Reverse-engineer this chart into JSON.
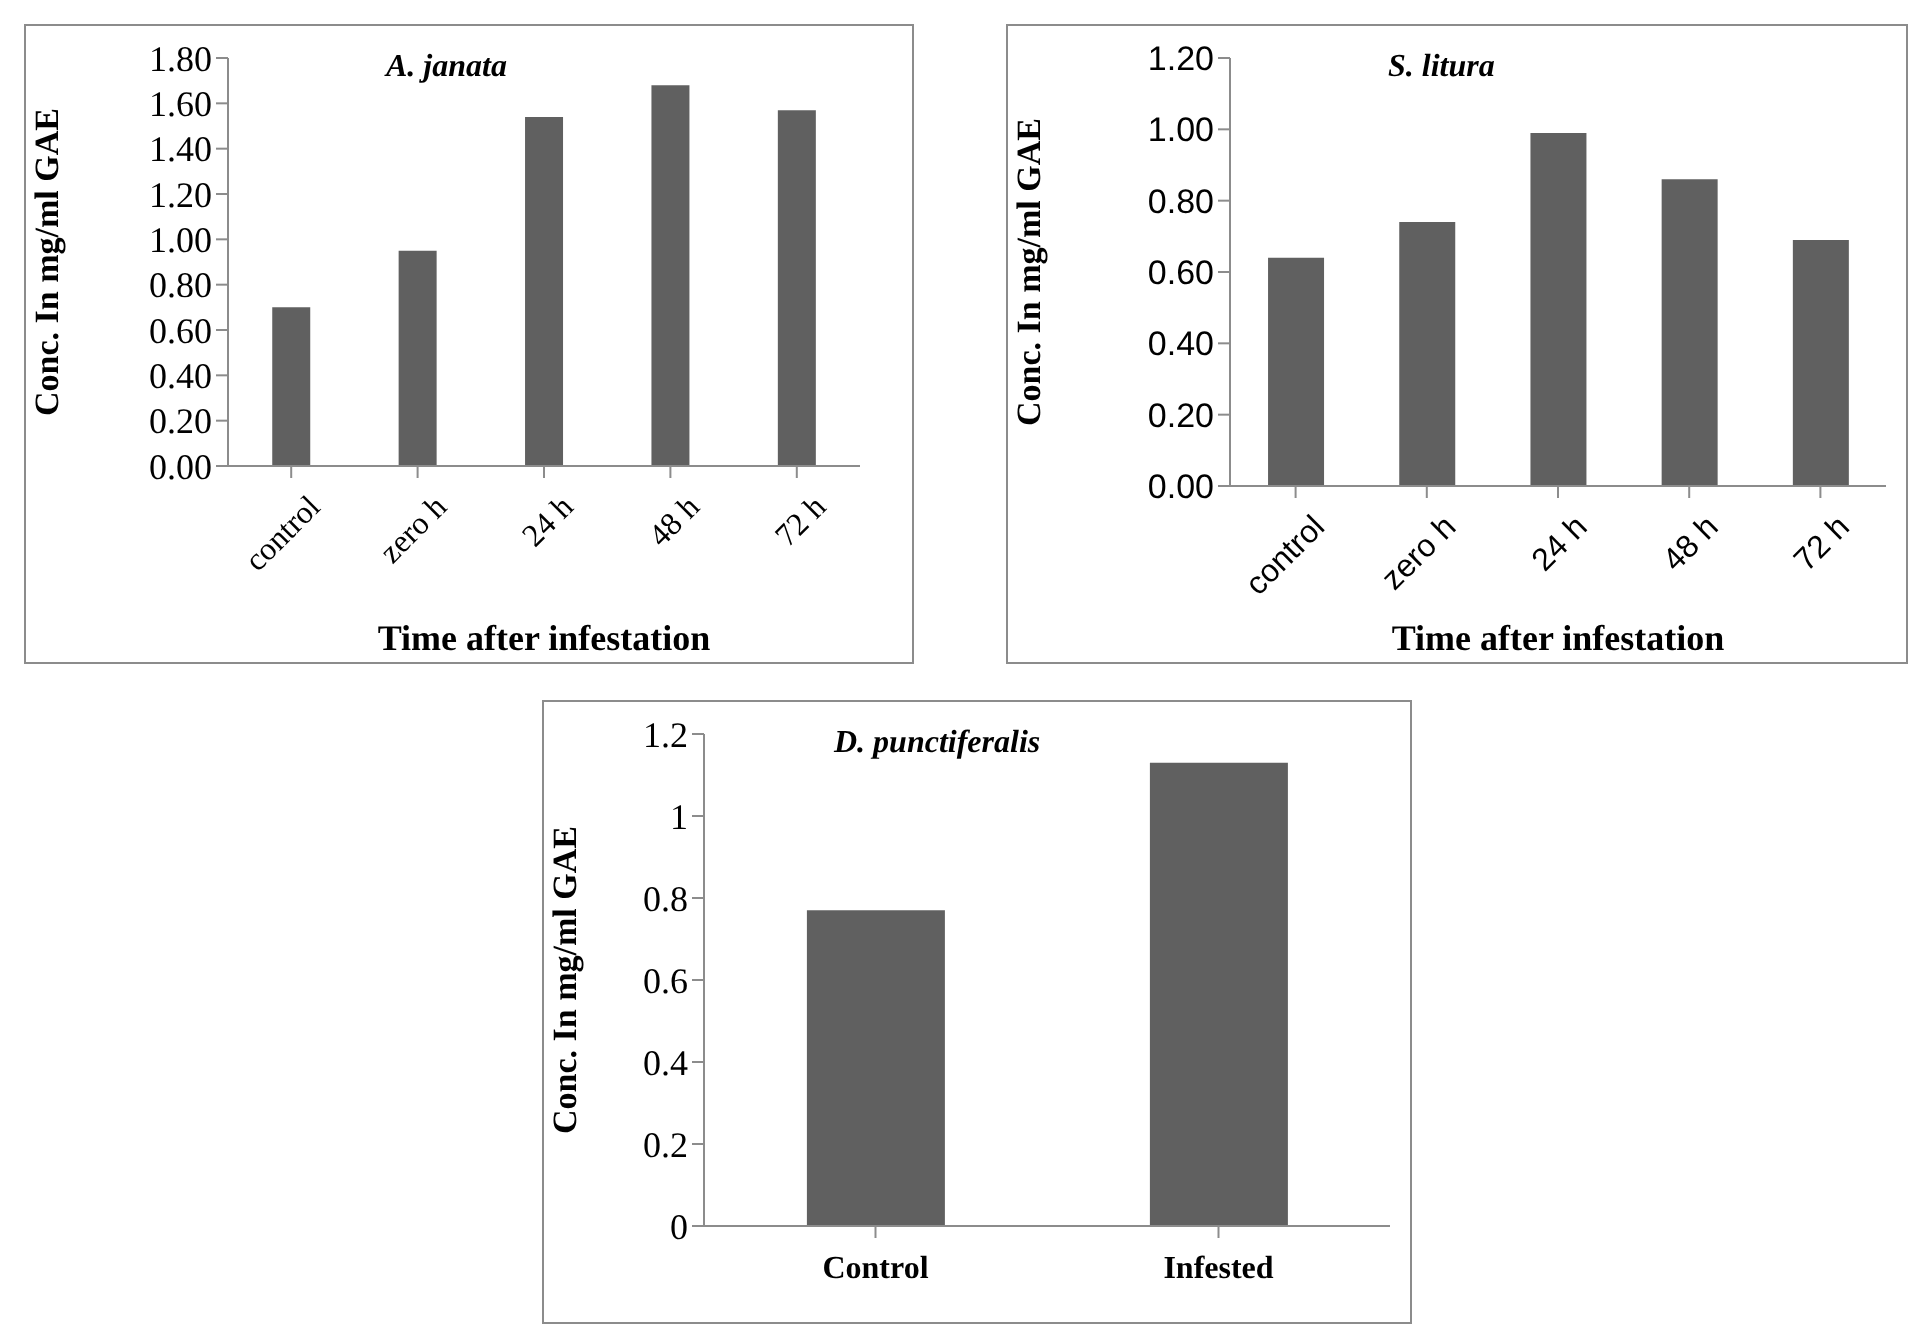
{
  "chart_data": [
    {
      "type": "bar",
      "title": "A. janata",
      "xlabel": "Time after infestation",
      "ylabel": "Conc. In mg/ml GAE",
      "categories": [
        "control",
        "zero h",
        "24 h",
        "48 h",
        "72 h"
      ],
      "values": [
        0.7,
        0.95,
        1.54,
        1.68,
        1.57
      ],
      "color": "#606060",
      "ylim": [
        0,
        1.8
      ],
      "yticks": [
        {
          "value": 0,
          "label": "0.00"
        },
        {
          "value": 0.2,
          "label": "0.20"
        },
        {
          "value": 0.4,
          "label": "0.40"
        },
        {
          "value": 0.6,
          "label": "0.60"
        },
        {
          "value": 0.8,
          "label": "0.80"
        },
        {
          "value": 1,
          "label": "1.00"
        },
        {
          "value": 1.2,
          "label": "1.20"
        },
        {
          "value": 1.4,
          "label": "1.40"
        },
        {
          "value": 1.6,
          "label": "1.60"
        },
        {
          "value": 1.8,
          "label": "1.80"
        }
      ],
      "grid": false
    },
    {
      "type": "bar",
      "title": "S. litura",
      "xlabel": "Time after infestation",
      "ylabel": "Conc. In mg/ml GAE",
      "categories": [
        "control",
        "zero h",
        "24 h",
        "48 h",
        "72 h"
      ],
      "values": [
        0.64,
        0.74,
        0.99,
        0.86,
        0.69
      ],
      "color": "#606060",
      "ylim": [
        0,
        1.2
      ],
      "yticks": [
        {
          "value": 0,
          "label": "0.00"
        },
        {
          "value": 0.2,
          "label": "0.20"
        },
        {
          "value": 0.4,
          "label": "0.40"
        },
        {
          "value": 0.6,
          "label": "0.60"
        },
        {
          "value": 0.8,
          "label": "0.80"
        },
        {
          "value": 1,
          "label": "1.00"
        },
        {
          "value": 1.2,
          "label": "1.20"
        }
      ],
      "grid": false
    },
    {
      "type": "bar",
      "title": "D. punctiferalis",
      "ylabel": "Conc. In mg/ml GAE",
      "categories": [
        "Control",
        "Infested"
      ],
      "values": [
        0.77,
        1.13
      ],
      "color": "#606060",
      "ylim": [
        0,
        1.2
      ],
      "yticks": [
        0,
        0.2,
        0.4,
        0.6,
        0.8,
        1,
        1.2
      ],
      "grid": false
    }
  ]
}
